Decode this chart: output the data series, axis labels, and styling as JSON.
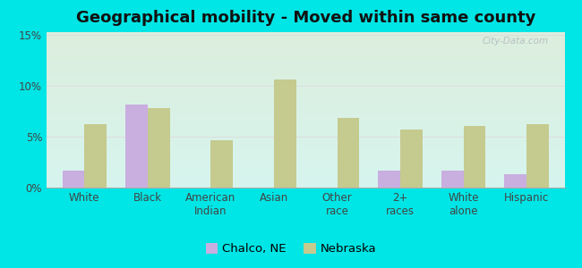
{
  "title": "Geographical mobility - Moved within same county",
  "categories": [
    "White",
    "Black",
    "American\nIndian",
    "Asian",
    "Other\nrace",
    "2+\nraces",
    "White\nalone",
    "Hispanic"
  ],
  "chalco_values": [
    1.7,
    8.2,
    0,
    0,
    0,
    1.7,
    1.7,
    1.3
  ],
  "nebraska_values": [
    6.2,
    7.8,
    4.7,
    10.6,
    6.9,
    5.7,
    6.1,
    6.2
  ],
  "chalco_color": "#c9aee0",
  "nebraska_color": "#c5ca8e",
  "yticks": [
    0,
    5,
    10,
    15
  ],
  "ylim": [
    0,
    15
  ],
  "legend_labels": [
    "Chalco, NE",
    "Nebraska"
  ],
  "watermark": "City-Data.com",
  "bar_width": 0.35,
  "title_fontsize": 13,
  "tick_fontsize": 8.5,
  "legend_fontsize": 9.5,
  "figure_bg": "#00e5e5",
  "grid_color": "#dddddd",
  "bg_top_color": "#d6f5ee",
  "bg_bottom_color": "#ddeedd"
}
